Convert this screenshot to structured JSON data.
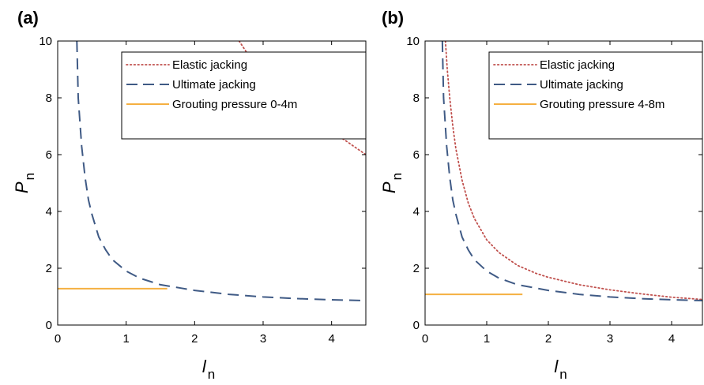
{
  "chart_data": [
    {
      "type": "line",
      "panel_label": "(a)",
      "xlabel": {
        "main": "l",
        "sub": "n"
      },
      "ylabel": {
        "main": "P",
        "sub": "n"
      },
      "xlim": [
        0,
        4.5
      ],
      "ylim": [
        0,
        10
      ],
      "xticks": [
        0,
        1,
        2,
        3,
        4
      ],
      "yticks": [
        0,
        2,
        4,
        6,
        8,
        10
      ],
      "grid": false,
      "legend_position": "top-right",
      "series": [
        {
          "name": "Elastic jacking",
          "style": "dotted",
          "color": "#c0504d",
          "x": [
            2.65,
            2.8,
            3.0,
            3.2,
            3.4,
            3.6,
            3.8,
            4.0,
            4.2,
            4.5
          ],
          "y": [
            10.0,
            9.45,
            8.8,
            8.3,
            7.85,
            7.45,
            7.1,
            6.8,
            6.5,
            6.0
          ]
        },
        {
          "name": "Ultimate jacking",
          "style": "dashed",
          "color": "#3f5a85",
          "x": [
            0.28,
            0.3,
            0.35,
            0.4,
            0.45,
            0.5,
            0.6,
            0.7,
            0.8,
            1.0,
            1.2,
            1.5,
            1.8,
            2.0,
            2.5,
            3.0,
            3.5,
            4.0,
            4.5
          ],
          "y": [
            10.0,
            8.0,
            6.3,
            5.2,
            4.4,
            3.9,
            3.1,
            2.65,
            2.3,
            1.9,
            1.65,
            1.42,
            1.3,
            1.22,
            1.08,
            0.99,
            0.93,
            0.89,
            0.86
          ]
        },
        {
          "name": "Grouting pressure 0-4m",
          "style": "solid",
          "color": "#f5b041",
          "x": [
            0,
            1.6
          ],
          "y": [
            1.28,
            1.28
          ]
        }
      ]
    },
    {
      "type": "line",
      "panel_label": "(b)",
      "xlabel": {
        "main": "l",
        "sub": "n"
      },
      "ylabel": {
        "main": "P",
        "sub": "n"
      },
      "xlim": [
        0,
        4.5
      ],
      "ylim": [
        0,
        10
      ],
      "xticks": [
        0,
        1,
        2,
        3,
        4
      ],
      "yticks": [
        0,
        2,
        4,
        6,
        8,
        10
      ],
      "grid": false,
      "legend_position": "top-right",
      "series": [
        {
          "name": "Elastic jacking",
          "style": "dotted",
          "color": "#c0504d",
          "x": [
            0.33,
            0.36,
            0.4,
            0.45,
            0.5,
            0.6,
            0.7,
            0.8,
            1.0,
            1.2,
            1.5,
            1.8,
            2.0,
            2.5,
            3.0,
            3.5,
            4.0,
            4.5
          ],
          "y": [
            10.0,
            9.0,
            8.0,
            7.0,
            6.2,
            5.1,
            4.3,
            3.75,
            3.0,
            2.55,
            2.1,
            1.82,
            1.68,
            1.42,
            1.24,
            1.1,
            0.98,
            0.9
          ]
        },
        {
          "name": "Ultimate jacking",
          "style": "dashed",
          "color": "#3f5a85",
          "x": [
            0.28,
            0.3,
            0.35,
            0.4,
            0.45,
            0.5,
            0.6,
            0.7,
            0.8,
            1.0,
            1.2,
            1.5,
            1.8,
            2.0,
            2.5,
            3.0,
            3.5,
            4.0,
            4.5
          ],
          "y": [
            10.0,
            8.0,
            6.3,
            5.2,
            4.4,
            3.9,
            3.1,
            2.65,
            2.3,
            1.9,
            1.65,
            1.42,
            1.3,
            1.22,
            1.08,
            0.99,
            0.93,
            0.89,
            0.86
          ]
        },
        {
          "name": "Grouting pressure 4-8m",
          "style": "solid",
          "color": "#f5b041",
          "x": [
            0,
            1.58
          ],
          "y": [
            1.08,
            1.08
          ]
        }
      ]
    }
  ]
}
